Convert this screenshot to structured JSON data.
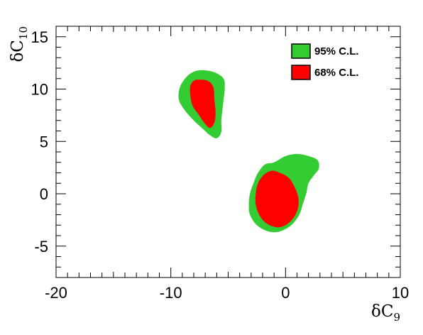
{
  "chart_data": {
    "type": "contour",
    "title": "",
    "xlabel": "δC₉",
    "ylabel": "δC₁₀",
    "xlabel_parts": {
      "symbol": "δC",
      "subscript": "9"
    },
    "ylabel_parts": {
      "symbol": "δC",
      "subscript": "10"
    },
    "xlim": [
      -20,
      10
    ],
    "ylim": [
      -8,
      16
    ],
    "x_ticks": [
      -20,
      -10,
      0,
      10
    ],
    "y_ticks": [
      -5,
      0,
      5,
      10,
      15
    ],
    "x_tick_labels": [
      "-20",
      "-10",
      "0",
      "10"
    ],
    "y_tick_labels": [
      "-5",
      "0",
      "5",
      "10",
      "15"
    ],
    "grid": false,
    "legend_position": "top-right",
    "series": [
      {
        "name": "95% C.L.",
        "color": "#33cc33",
        "regions": [
          {
            "points": [
              [
                -7.2,
                11.8
              ],
              [
                -6.2,
                11.6
              ],
              [
                -5.4,
                11.0
              ],
              [
                -5.3,
                10.0
              ],
              [
                -5.4,
                9.0
              ],
              [
                -5.5,
                8.0
              ],
              [
                -5.6,
                7.0
              ],
              [
                -5.6,
                5.9
              ],
              [
                -6.0,
                5.3
              ],
              [
                -6.6,
                5.6
              ],
              [
                -7.2,
                6.2
              ],
              [
                -8.0,
                7.0
              ],
              [
                -8.8,
                8.0
              ],
              [
                -9.3,
                9.0
              ],
              [
                -9.2,
                10.2
              ],
              [
                -8.6,
                11.2
              ],
              [
                -7.9,
                11.7
              ]
            ]
          },
          {
            "points": [
              [
                -1.0,
                3.0
              ],
              [
                0.0,
                3.6
              ],
              [
                1.0,
                3.8
              ],
              [
                2.0,
                3.6
              ],
              [
                2.8,
                3.2
              ],
              [
                2.9,
                2.4
              ],
              [
                2.5,
                1.8
              ],
              [
                2.0,
                1.0
              ],
              [
                1.8,
                0.0
              ],
              [
                1.5,
                -1.0
              ],
              [
                1.2,
                -2.0
              ],
              [
                0.5,
                -3.0
              ],
              [
                -0.5,
                -3.6
              ],
              [
                -1.5,
                -3.6
              ],
              [
                -2.5,
                -3.0
              ],
              [
                -3.1,
                -2.0
              ],
              [
                -3.2,
                -1.0
              ],
              [
                -3.1,
                0.0
              ],
              [
                -2.8,
                1.0
              ],
              [
                -2.4,
                2.0
              ],
              [
                -1.8,
                2.8
              ]
            ]
          }
        ]
      },
      {
        "name": "68% C.L.",
        "color": "#ff0000",
        "regions": [
          {
            "points": [
              [
                -7.6,
                10.9
              ],
              [
                -6.8,
                10.8
              ],
              [
                -6.3,
                10.2
              ],
              [
                -6.2,
                9.0
              ],
              [
                -6.1,
                7.8
              ],
              [
                -6.2,
                6.8
              ],
              [
                -6.6,
                6.3
              ],
              [
                -7.1,
                6.8
              ],
              [
                -7.6,
                7.6
              ],
              [
                -8.1,
                8.4
              ],
              [
                -8.3,
                9.4
              ],
              [
                -8.3,
                10.3
              ],
              [
                -8.0,
                10.8
              ]
            ]
          },
          {
            "points": [
              [
                -1.2,
                2.2
              ],
              [
                -0.5,
                2.0
              ],
              [
                0.3,
                1.5
              ],
              [
                0.8,
                0.6
              ],
              [
                1.1,
                -0.3
              ],
              [
                1.1,
                -1.3
              ],
              [
                0.7,
                -2.3
              ],
              [
                0.0,
                -3.0
              ],
              [
                -0.8,
                -3.2
              ],
              [
                -1.7,
                -2.8
              ],
              [
                -2.3,
                -2.0
              ],
              [
                -2.6,
                -1.0
              ],
              [
                -2.6,
                0.0
              ],
              [
                -2.4,
                1.0
              ],
              [
                -1.9,
                1.8
              ]
            ]
          }
        ]
      }
    ]
  }
}
